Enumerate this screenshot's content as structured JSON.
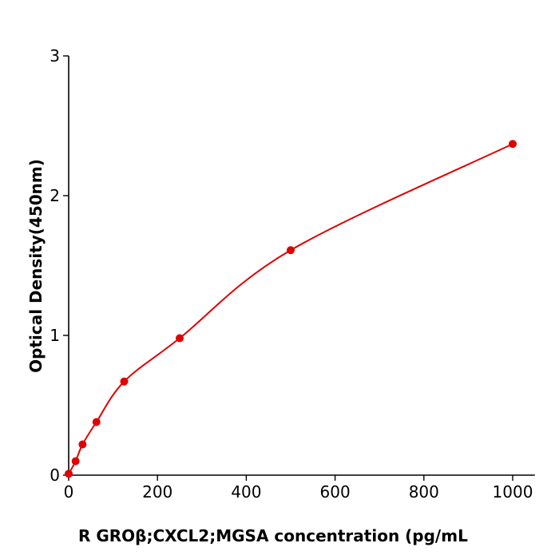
{
  "chart_data": {
    "type": "scatter",
    "title": "",
    "xlabel": "R  GROβ;CXCL2;MGSA concentration (pg/mL",
    "ylabel": "Optical Density(450nm)",
    "xlim": [
      0,
      1050
    ],
    "ylim": [
      0,
      3
    ],
    "xticks": [
      "0",
      "200",
      "400",
      "600",
      "800",
      "1000"
    ],
    "yticks": [
      "0",
      "1",
      "2",
      "3"
    ],
    "grid": false,
    "legend": "none",
    "color": "#e00000",
    "series": [
      {
        "x": [
          0,
          15.6,
          31.25,
          62.5,
          125,
          250,
          500,
          1000
        ],
        "y": [
          0.01,
          0.1,
          0.22,
          0.38,
          0.67,
          0.98,
          1.61,
          2.37
        ],
        "fit_line": true
      }
    ]
  }
}
